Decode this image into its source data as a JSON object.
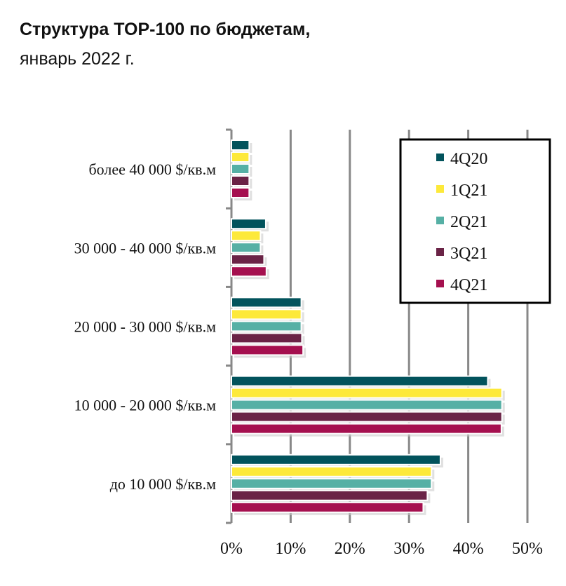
{
  "title_line1": "Структура TOP-100 по бюджетам,",
  "title_line2": "январь 2022 г.",
  "chart_data": {
    "type": "bar",
    "orientation": "horizontal",
    "categories": [
      "более 40 000 $/кв.м",
      "30 000 - 40 000 $/кв.м",
      "20 000 - 30 000 $/кв.м",
      "10 000 - 20 000 $/кв.м",
      "до 10 000 $/кв.м"
    ],
    "series": [
      {
        "name": "4Q20",
        "color": "#02535C",
        "values": [
          3,
          5.8,
          11.8,
          43.3,
          35.3
        ]
      },
      {
        "name": "1Q21",
        "color": "#FDE93A",
        "values": [
          3,
          4.9,
          11.8,
          45.7,
          33.8
        ]
      },
      {
        "name": "2Q21",
        "color": "#56B0A5",
        "values": [
          3,
          4.9,
          11.8,
          45.7,
          33.8
        ]
      },
      {
        "name": "3Q21",
        "color": "#6A2346",
        "values": [
          3,
          5.5,
          11.9,
          45.7,
          33.1
        ]
      },
      {
        "name": "4Q21",
        "color": "#A5104F",
        "values": [
          3,
          5.9,
          12.1,
          45.6,
          32.4
        ]
      }
    ],
    "xlim": [
      0,
      50
    ],
    "xticks": [
      "0%",
      "10%",
      "20%",
      "30%",
      "40%",
      "50%"
    ],
    "grid": "vertical",
    "legend": "top-right"
  }
}
